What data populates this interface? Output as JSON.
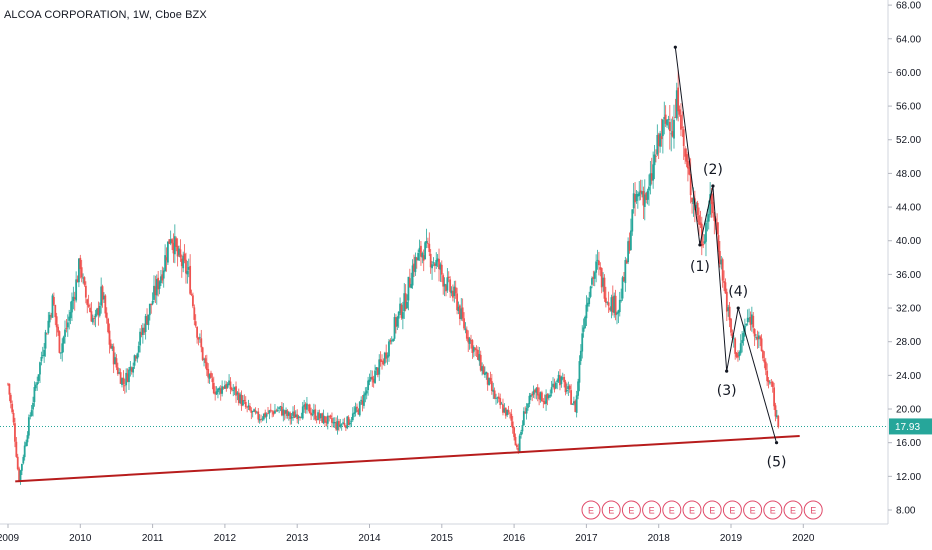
{
  "header": {
    "title": "ALCOA CORPORATION, 1W, Cboe BZX"
  },
  "colors": {
    "up": "#26a69a",
    "down": "#ef5350",
    "trendline": "#b71c1c",
    "hline": "#26a69a",
    "wave": "#131722",
    "earnings": "#e04b6a"
  },
  "chart_data": {
    "type": "candlestick",
    "title": "ALCOA CORPORATION, 1W, Cboe BZX",
    "ylim": [
      4,
      70
    ],
    "y_ticks": [
      "8.00",
      "12.00",
      "16.00",
      "20.00",
      "24.00",
      "28.00",
      "32.00",
      "36.00",
      "40.00",
      "44.00",
      "48.00",
      "52.00",
      "56.00",
      "60.00",
      "64.00",
      "68.00"
    ],
    "x_ticks": [
      "2009",
      "2010",
      "2011",
      "2012",
      "2013",
      "2014",
      "2015",
      "2016",
      "2017",
      "2018",
      "2019",
      "2020"
    ],
    "last_price": "17.93",
    "price_series": [
      [
        2009.0,
        23
      ],
      [
        2009.08,
        18
      ],
      [
        2009.15,
        11.5
      ],
      [
        2009.3,
        19
      ],
      [
        2009.5,
        28
      ],
      [
        2009.62,
        33
      ],
      [
        2009.72,
        27
      ],
      [
        2009.85,
        31
      ],
      [
        2010.0,
        37.5
      ],
      [
        2010.05,
        34
      ],
      [
        2010.2,
        30
      ],
      [
        2010.3,
        34
      ],
      [
        2010.4,
        28
      ],
      [
        2010.5,
        25
      ],
      [
        2010.6,
        23
      ],
      [
        2010.7,
        25
      ],
      [
        2010.85,
        29
      ],
      [
        2011.0,
        33
      ],
      [
        2011.15,
        37
      ],
      [
        2011.25,
        41
      ],
      [
        2011.35,
        38
      ],
      [
        2011.5,
        36
      ],
      [
        2011.6,
        30
      ],
      [
        2011.7,
        26
      ],
      [
        2011.8,
        23
      ],
      [
        2011.9,
        22
      ],
      [
        2012.0,
        23
      ],
      [
        2012.15,
        22
      ],
      [
        2012.3,
        20
      ],
      [
        2012.45,
        19
      ],
      [
        2012.6,
        19.5
      ],
      [
        2012.75,
        20
      ],
      [
        2012.9,
        19
      ],
      [
        2013.0,
        19.5
      ],
      [
        2013.15,
        20
      ],
      [
        2013.3,
        19
      ],
      [
        2013.45,
        18.5
      ],
      [
        2013.55,
        18
      ],
      [
        2013.7,
        18.5
      ],
      [
        2013.85,
        20
      ],
      [
        2014.0,
        23
      ],
      [
        2014.2,
        26
      ],
      [
        2014.35,
        30
      ],
      [
        2014.5,
        33
      ],
      [
        2014.6,
        37
      ],
      [
        2014.75,
        39
      ],
      [
        2014.85,
        38
      ],
      [
        2014.95,
        37
      ],
      [
        2015.05,
        35
      ],
      [
        2015.2,
        33
      ],
      [
        2015.3,
        30
      ],
      [
        2015.4,
        28
      ],
      [
        2015.5,
        26
      ],
      [
        2015.6,
        24
      ],
      [
        2015.75,
        21
      ],
      [
        2015.85,
        20
      ],
      [
        2015.95,
        19
      ],
      [
        2016.05,
        15
      ],
      [
        2016.15,
        20
      ],
      [
        2016.3,
        22
      ],
      [
        2016.45,
        21
      ],
      [
        2016.6,
        24
      ],
      [
        2016.75,
        22
      ],
      [
        2016.85,
        20
      ],
      [
        2016.95,
        30
      ],
      [
        2017.05,
        35
      ],
      [
        2017.15,
        37
      ],
      [
        2017.3,
        33
      ],
      [
        2017.45,
        32
      ],
      [
        2017.55,
        37
      ],
      [
        2017.65,
        44
      ],
      [
        2017.75,
        46
      ],
      [
        2017.85,
        45
      ],
      [
        2017.95,
        50
      ],
      [
        2018.05,
        53
      ],
      [
        2018.15,
        55
      ],
      [
        2018.2,
        53
      ],
      [
        2018.28,
        58
      ],
      [
        2018.33,
        52
      ],
      [
        2018.4,
        48
      ],
      [
        2018.45,
        46
      ],
      [
        2018.55,
        43
      ],
      [
        2018.6,
        40
      ],
      [
        2018.7,
        44
      ],
      [
        2018.75,
        44
      ],
      [
        2018.82,
        40
      ],
      [
        2018.9,
        35
      ],
      [
        2019.0,
        29
      ],
      [
        2019.1,
        26
      ],
      [
        2019.2,
        30
      ],
      [
        2019.28,
        31
      ],
      [
        2019.35,
        29
      ],
      [
        2019.45,
        26
      ],
      [
        2019.52,
        23
      ],
      [
        2019.58,
        22
      ],
      [
        2019.62,
        19
      ],
      [
        2019.66,
        17.93
      ]
    ],
    "elliott_wave": {
      "points": [
        [
          2018.23,
          63
        ],
        [
          2018.57,
          39.5
        ],
        [
          2018.75,
          46.5
        ],
        [
          2018.94,
          24.5
        ],
        [
          2019.1,
          32
        ],
        [
          2019.63,
          16
        ]
      ],
      "labels": [
        "(1)",
        "(2)",
        "(3)",
        "(4)",
        "(5)"
      ]
    },
    "trendline": {
      "start": [
        2009.1,
        11.4
      ],
      "end": [
        2019.95,
        16.8
      ]
    },
    "hline": 17.93,
    "earnings_markers": {
      "label": "E",
      "count": 12
    }
  }
}
